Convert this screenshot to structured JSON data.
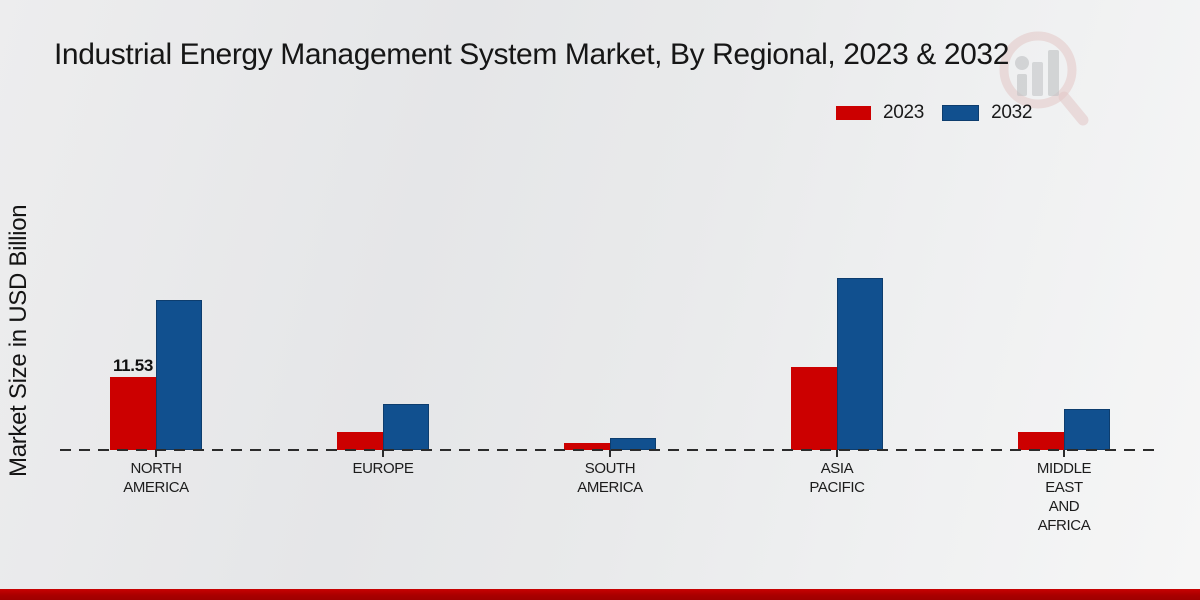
{
  "title": "Industrial Energy Management System Market, By Regional, 2023 & 2032",
  "y_axis_label": "Market Size in USD Billion",
  "colors": {
    "series_2023": "#cc0000",
    "series_2032": "#11508f",
    "footer_bar": "#a80000",
    "baseline": "#2b2b2b"
  },
  "chart_data": {
    "type": "bar",
    "title": "Industrial Energy Management System Market, By Regional, 2023 & 2032",
    "xlabel": "",
    "ylabel": "Market Size in USD Billion",
    "categories": [
      "NORTH\nAMERICA",
      "EUROPE",
      "SOUTH\nAMERICA",
      "ASIA\nPACIFIC",
      "MIDDLE\nEAST\nAND\nAFRICA"
    ],
    "series": [
      {
        "name": "2023",
        "color": "#cc0000",
        "values": [
          11.53,
          2.8,
          1.1,
          13.1,
          2.9
        ],
        "labels": [
          "11.53",
          null,
          null,
          null,
          null
        ]
      },
      {
        "name": "2032",
        "color": "#11508f",
        "values": [
          23.7,
          7.3,
          1.9,
          27.2,
          6.4
        ],
        "labels": [
          null,
          null,
          null,
          null,
          null
        ]
      }
    ],
    "ylim": [
      0,
      30
    ],
    "grid": false,
    "axis_style": "dashed-baseline-only",
    "legend_position": "top-right"
  }
}
